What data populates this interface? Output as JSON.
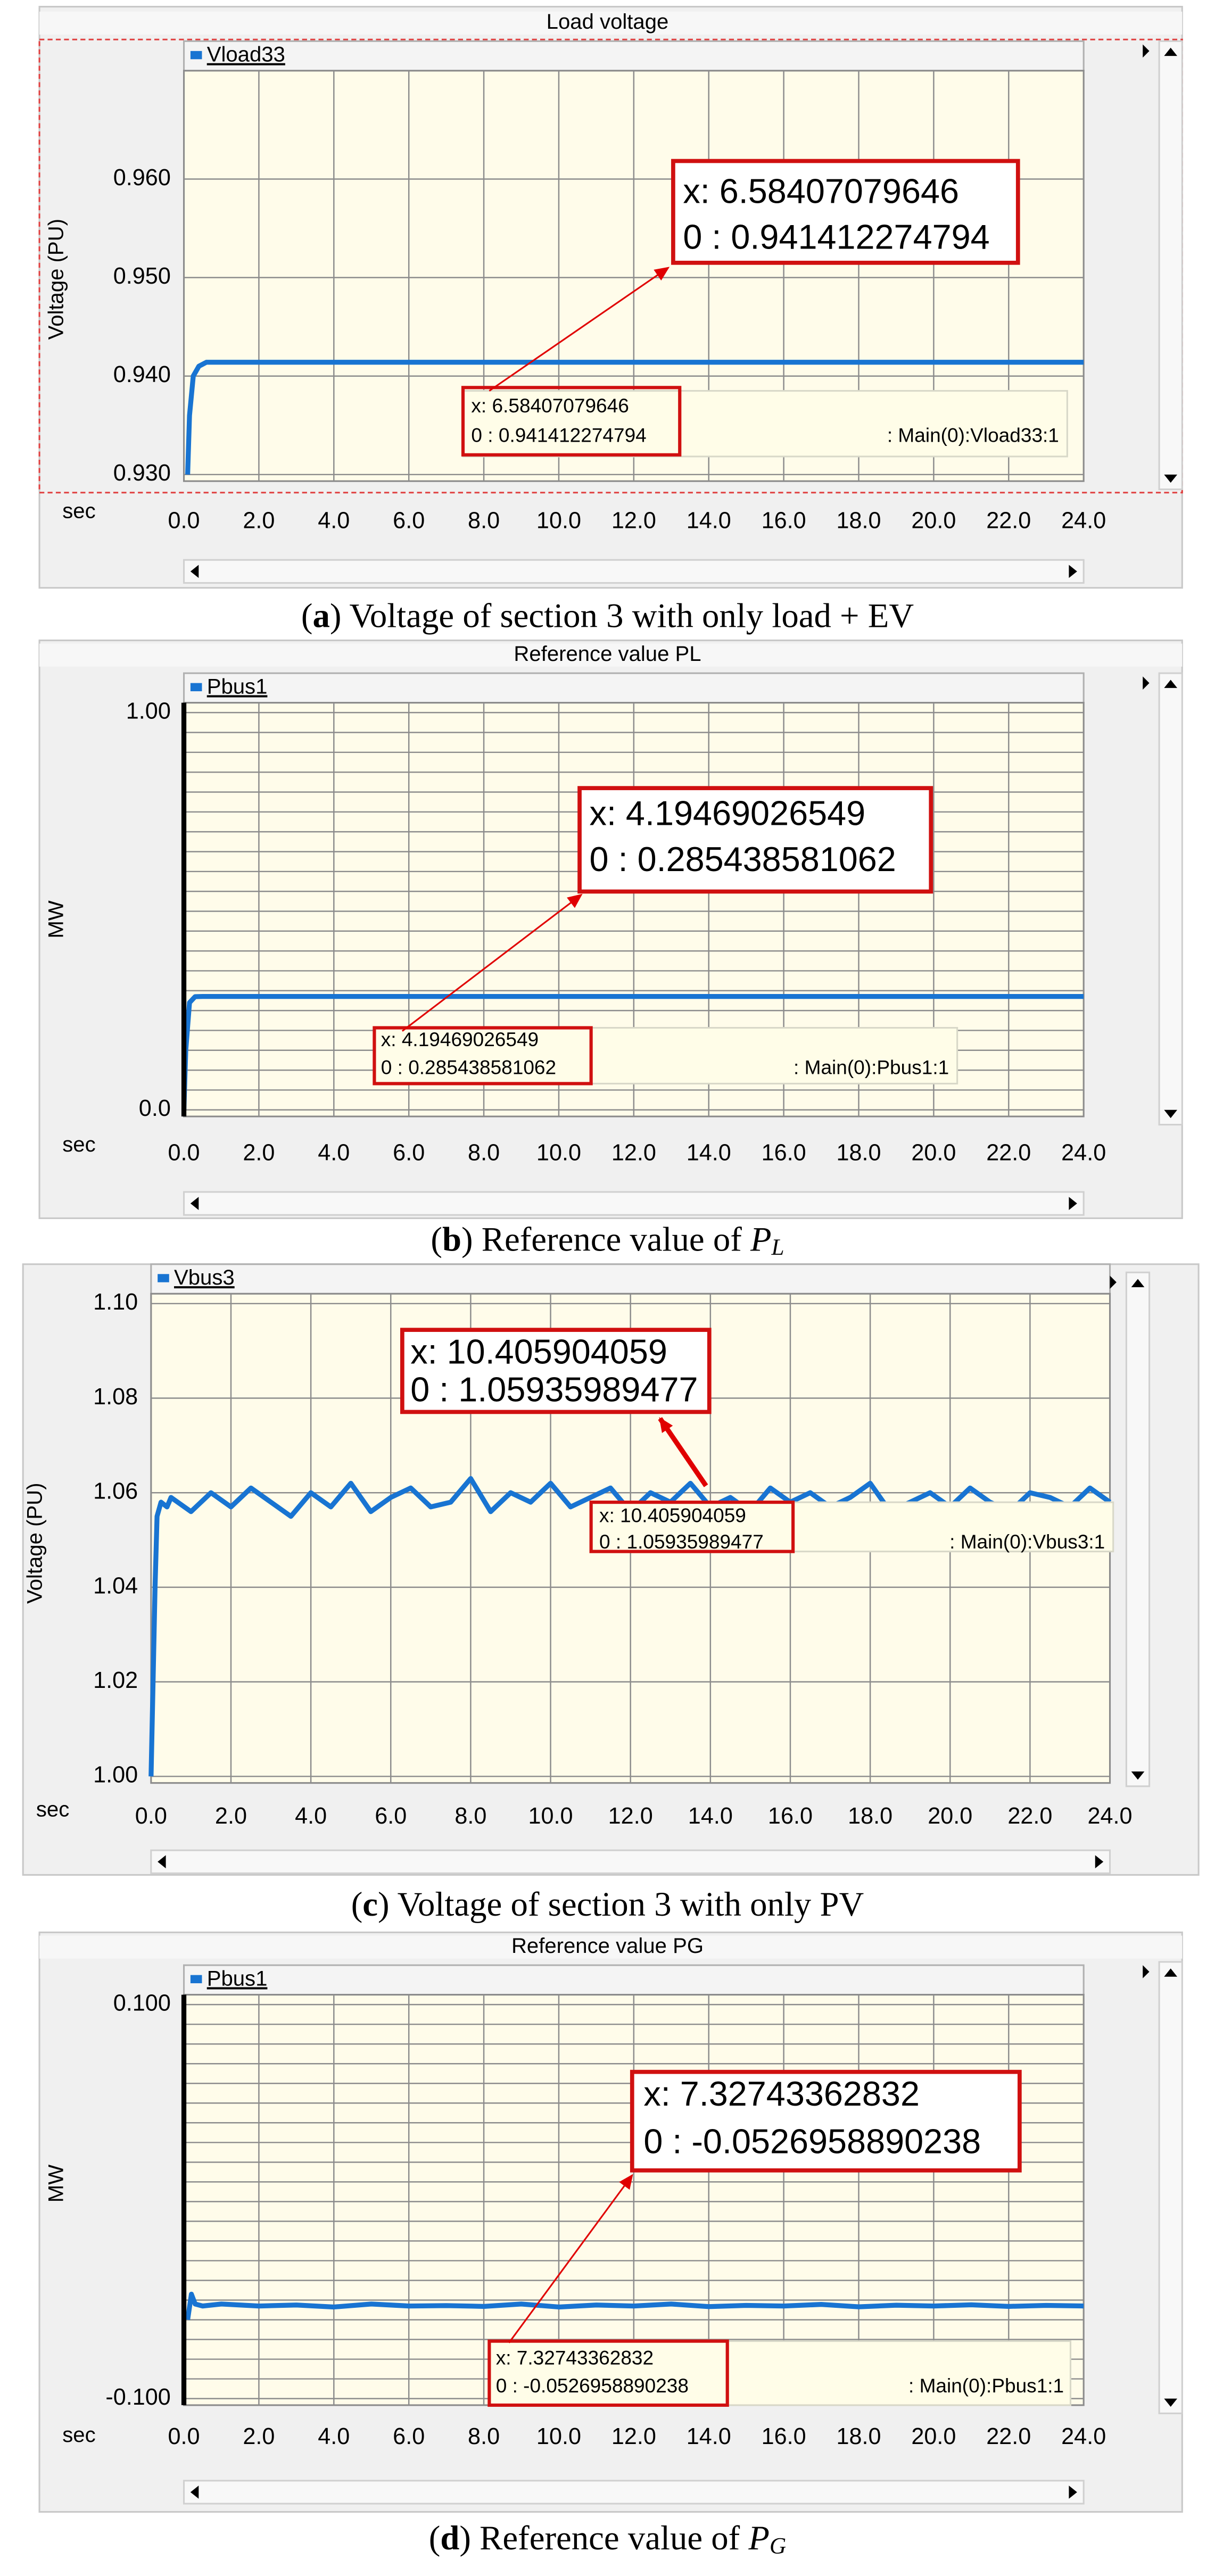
{
  "chart_data": [
    {
      "type": "line",
      "title": "Load voltage",
      "ylabel": "Voltage (PU)",
      "xlabel": "sec",
      "xlim": [
        0,
        24
      ],
      "ylim": [
        0.93,
        0.97
      ],
      "xticks": [
        {
          "value": 0,
          "label": "0.0"
        },
        {
          "value": 2,
          "label": "2.0"
        },
        {
          "value": 4,
          "label": "4.0"
        },
        {
          "value": 6,
          "label": "6.0"
        },
        {
          "value": 8,
          "label": "8.0"
        },
        {
          "value": 10,
          "label": "10.0"
        },
        {
          "value": 12,
          "label": "12.0"
        },
        {
          "value": 14,
          "label": "14.0"
        },
        {
          "value": 16,
          "label": "16.0"
        },
        {
          "value": 18,
          "label": "18.0"
        },
        {
          "value": 20,
          "label": "20.0"
        },
        {
          "value": 22,
          "label": "22.0"
        },
        {
          "value": 24,
          "label": "24.0"
        }
      ],
      "yticks": [
        {
          "value": 0.93,
          "label": "0.930"
        },
        {
          "value": 0.94,
          "label": "0.940"
        },
        {
          "value": 0.95,
          "label": "0.950"
        },
        {
          "value": 0.96,
          "label": "0.960"
        }
      ],
      "grid": true,
      "x": [
        0.1,
        0.15,
        0.25,
        0.4,
        0.6,
        24
      ],
      "series": [
        {
          "name": "Vload33",
          "color": "#1874d2",
          "values": [
            0.93,
            0.936,
            0.94,
            0.941,
            0.9414,
            0.9414
          ]
        }
      ],
      "annotation": {
        "x_text": "x: 6.58407079646",
        "y_text": "0 : 0.941412274794",
        "source": ": Main(0):Vload33:1"
      },
      "caption": {
        "prefix": "(",
        "label": "a",
        "text": ") Voltage of section 3 with only load + EV"
      }
    },
    {
      "type": "line",
      "title": "Reference value PL",
      "ylabel": "MW",
      "xlabel": "sec",
      "xlim": [
        0,
        24
      ],
      "ylim": [
        0,
        1
      ],
      "xticks": [
        {
          "value": 0,
          "label": "0.0"
        },
        {
          "value": 2,
          "label": "2.0"
        },
        {
          "value": 4,
          "label": "4.0"
        },
        {
          "value": 6,
          "label": "6.0"
        },
        {
          "value": 8,
          "label": "8.0"
        },
        {
          "value": 10,
          "label": "10.0"
        },
        {
          "value": 12,
          "label": "12.0"
        },
        {
          "value": 14,
          "label": "14.0"
        },
        {
          "value": 16,
          "label": "16.0"
        },
        {
          "value": 18,
          "label": "18.0"
        },
        {
          "value": 20,
          "label": "20.0"
        },
        {
          "value": 22,
          "label": "22.0"
        },
        {
          "value": 24,
          "label": "24.0"
        }
      ],
      "yticks": [
        {
          "value": 0,
          "label": "0.0"
        },
        {
          "value": 1,
          "label": "1.00"
        }
      ],
      "yminorticks": [
        0.05,
        0.1,
        0.15,
        0.2,
        0.25,
        0.3,
        0.35,
        0.4,
        0.45,
        0.5,
        0.55,
        0.6,
        0.65,
        0.7,
        0.75,
        0.8,
        0.85,
        0.9,
        0.95
      ],
      "grid": true,
      "x": [
        0,
        0.05,
        0.15,
        0.3,
        0.5,
        24
      ],
      "series": [
        {
          "name": "Pbus1",
          "color": "#1874d2",
          "values": [
            0,
            0.15,
            0.27,
            0.285,
            0.2854,
            0.2854
          ]
        }
      ],
      "annotation": {
        "x_text": "x: 4.19469026549",
        "y_text": "0 : 0.285438581062",
        "source": ": Main(0):Pbus1:1"
      },
      "caption": {
        "prefix": "(",
        "label": "b",
        "text": ") Reference value of ",
        "symbol": "P",
        "subscript": "L"
      }
    },
    {
      "type": "line",
      "ylabel": "Voltage (PU)",
      "xlabel": "sec",
      "xlim": [
        0,
        24
      ],
      "ylim": [
        1.0,
        1.1
      ],
      "xticks": [
        {
          "value": 0,
          "label": "0.0"
        },
        {
          "value": 2,
          "label": "2.0"
        },
        {
          "value": 4,
          "label": "4.0"
        },
        {
          "value": 6,
          "label": "6.0"
        },
        {
          "value": 8,
          "label": "8.0"
        },
        {
          "value": 10,
          "label": "10.0"
        },
        {
          "value": 12,
          "label": "12.0"
        },
        {
          "value": 14,
          "label": "14.0"
        },
        {
          "value": 16,
          "label": "16.0"
        },
        {
          "value": 18,
          "label": "18.0"
        },
        {
          "value": 20,
          "label": "20.0"
        },
        {
          "value": 22,
          "label": "22.0"
        },
        {
          "value": 24,
          "label": "24.0"
        }
      ],
      "yticks": [
        {
          "value": 1.0,
          "label": "1.00"
        },
        {
          "value": 1.02,
          "label": "1.02"
        },
        {
          "value": 1.04,
          "label": "1.04"
        },
        {
          "value": 1.06,
          "label": "1.06"
        },
        {
          "value": 1.08,
          "label": "1.08"
        },
        {
          "value": 1.1,
          "label": "1.10"
        }
      ],
      "grid": true,
      "x": [
        0,
        0.05,
        0.1,
        0.15,
        0.25,
        0.4,
        0.5,
        1,
        1.5,
        2,
        2.5,
        3,
        3.5,
        4,
        4.5,
        5,
        5.5,
        6,
        6.5,
        7,
        7.5,
        8,
        8.5,
        9,
        9.5,
        10,
        10.5,
        11,
        11.5,
        12,
        12.5,
        13,
        13.5,
        14,
        14.5,
        15,
        15.5,
        16,
        16.5,
        17,
        17.5,
        18,
        18.5,
        19,
        19.5,
        20,
        20.5,
        21,
        21.5,
        22,
        22.5,
        23,
        23.5,
        24
      ],
      "series": [
        {
          "name": "Vbus3",
          "color": "#1874d2",
          "values": [
            1.0,
            1.02,
            1.04,
            1.055,
            1.058,
            1.057,
            1.059,
            1.056,
            1.06,
            1.057,
            1.061,
            1.058,
            1.055,
            1.06,
            1.057,
            1.062,
            1.056,
            1.059,
            1.061,
            1.057,
            1.058,
            1.063,
            1.056,
            1.06,
            1.058,
            1.062,
            1.057,
            1.059,
            1.061,
            1.056,
            1.06,
            1.058,
            1.062,
            1.057,
            1.059,
            1.056,
            1.061,
            1.058,
            1.06,
            1.057,
            1.059,
            1.062,
            1.056,
            1.058,
            1.06,
            1.057,
            1.061,
            1.058,
            1.056,
            1.06,
            1.059,
            1.057,
            1.061,
            1.058
          ]
        }
      ],
      "annotation": {
        "x_text": "x: 10.405904059",
        "y_text": "0 : 1.05935989477",
        "source": ": Main(0):Vbus3:1"
      },
      "caption": {
        "prefix": "(",
        "label": "c",
        "text": ") Voltage of section 3 with only PV"
      }
    },
    {
      "type": "line",
      "title": "Reference value PG",
      "ylabel": "MW",
      "xlabel": "sec",
      "xlim": [
        0,
        24
      ],
      "ylim": [
        -0.1,
        0.1
      ],
      "xticks": [
        {
          "value": 0,
          "label": "0.0"
        },
        {
          "value": 2,
          "label": "2.0"
        },
        {
          "value": 4,
          "label": "4.0"
        },
        {
          "value": 6,
          "label": "6.0"
        },
        {
          "value": 8,
          "label": "8.0"
        },
        {
          "value": 10,
          "label": "10.0"
        },
        {
          "value": 12,
          "label": "12.0"
        },
        {
          "value": 14,
          "label": "14.0"
        },
        {
          "value": 16,
          "label": "16.0"
        },
        {
          "value": 18,
          "label": "18.0"
        },
        {
          "value": 20,
          "label": "20.0"
        },
        {
          "value": 22,
          "label": "22.0"
        },
        {
          "value": 24,
          "label": "24.0"
        }
      ],
      "yticks": [
        {
          "value": -0.1,
          "label": "-0.100"
        },
        {
          "value": 0.1,
          "label": "0.100"
        }
      ],
      "yminorticks": [
        -0.09,
        -0.08,
        -0.07,
        -0.06,
        -0.05,
        -0.04,
        -0.03,
        -0.02,
        -0.01,
        0,
        0.01,
        0.02,
        0.03,
        0.04,
        0.05,
        0.06,
        0.07,
        0.08,
        0.09
      ],
      "grid": true,
      "x": [
        0.1,
        0.2,
        0.3,
        0.5,
        1,
        2,
        3,
        4,
        5,
        6,
        7,
        8,
        9,
        10,
        11,
        12,
        13,
        14,
        15,
        16,
        17,
        18,
        19,
        20,
        21,
        22,
        23,
        24
      ],
      "series": [
        {
          "name": "Pbus1",
          "color": "#1874d2",
          "values": [
            -0.06,
            -0.047,
            -0.052,
            -0.053,
            -0.052,
            -0.053,
            -0.0525,
            -0.0535,
            -0.052,
            -0.053,
            -0.0528,
            -0.0532,
            -0.052,
            -0.0535,
            -0.0525,
            -0.053,
            -0.052,
            -0.0533,
            -0.0527,
            -0.053,
            -0.0522,
            -0.0534,
            -0.0526,
            -0.053,
            -0.0524,
            -0.0532,
            -0.0527,
            -0.053
          ]
        }
      ],
      "annotation": {
        "x_text": "x: 7.32743362832",
        "y_text": "0 : -0.0526958890238",
        "source": ": Main(0):Pbus1:1"
      },
      "caption": {
        "prefix": "(",
        "label": "d",
        "text": ") Reference value of ",
        "symbol": "P",
        "subscript": "G"
      }
    }
  ]
}
